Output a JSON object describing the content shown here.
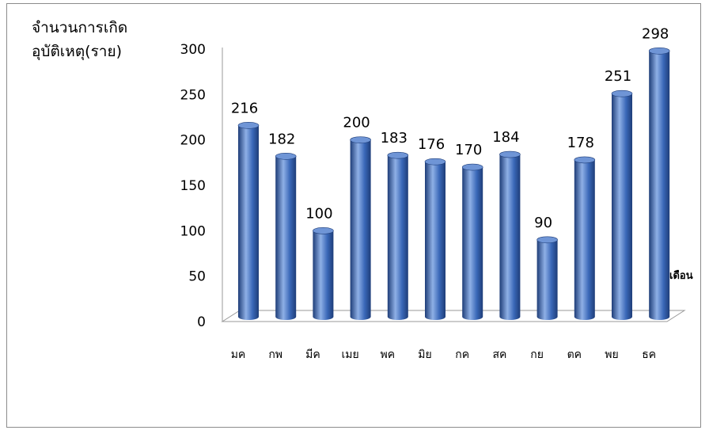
{
  "chart_data": {
    "type": "bar",
    "ylabel_line1": "จำนวนการเกิด",
    "ylabel_line2": "อุบัติเหตุ(ราย)",
    "xlabel": "เดือน",
    "categories": [
      "มค",
      "กพ",
      "มีค",
      "เมย",
      "พค",
      "มิย",
      "กค",
      "สค",
      "กย",
      "ตค",
      "พย",
      "ธค"
    ],
    "values": [
      216,
      182,
      100,
      200,
      183,
      176,
      170,
      184,
      90,
      178,
      251,
      298
    ],
    "ylim": [
      0,
      300
    ],
    "yticks": [
      0,
      50,
      100,
      150,
      200,
      250,
      300
    ],
    "grid": false,
    "legend": "none",
    "bar_color": "#3a68b8",
    "bar_dark": "#1e3d78",
    "bar_light": "#8fb0e6",
    "bar_top": "#6f95d6"
  }
}
